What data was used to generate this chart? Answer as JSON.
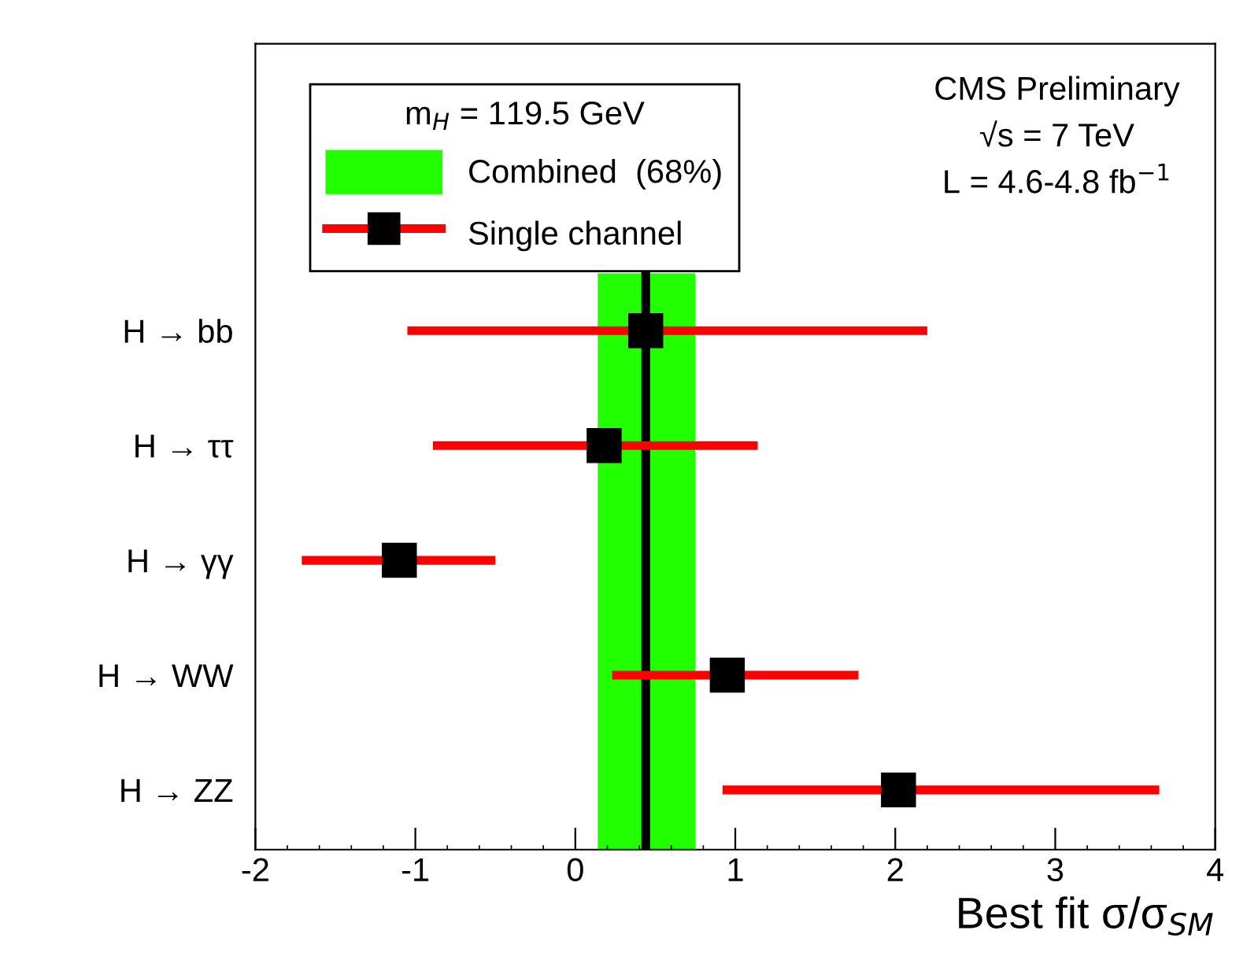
{
  "chart_data": {
    "type": "scatter",
    "orientation": "horizontal",
    "xlabel": "Best fit σ/σ$_{SM}$",
    "legend_title": "m$_{H}$ = 119.5 GeV",
    "categories": [
      "H → bb",
      "H → ττ",
      "H → γγ",
      "H → WW",
      "H → ZZ"
    ],
    "series": [
      {
        "name": "Single channel",
        "color": "#000000",
        "values": [
          0.44,
          0.18,
          -1.1,
          0.95,
          2.02
        ],
        "errors": [
          [
            -1.05,
            2.2
          ],
          [
            -0.89,
            1.14
          ],
          [
            -1.71,
            -0.5
          ],
          [
            0.23,
            1.77
          ],
          [
            0.92,
            3.65
          ]
        ]
      }
    ],
    "ref_lines": [
      {
        "axis": "x",
        "value": 0.44,
        "color": "#000000"
      }
    ],
    "bands": [
      {
        "axis": "x",
        "from": 0.14,
        "to": 0.75,
        "label": "Combined  (68%)",
        "color": "#22ff00"
      }
    ],
    "annotations": [
      "CMS Preliminary",
      "√s = 7 TeV",
      "L = 4.6-4.8 fb$^{−1}$"
    ],
    "xlim": [
      -2,
      4
    ],
    "xticks": [
      -2,
      -1,
      0,
      1,
      2,
      3,
      4
    ],
    "marker": "square",
    "legend": "top left",
    "grid": false
  }
}
